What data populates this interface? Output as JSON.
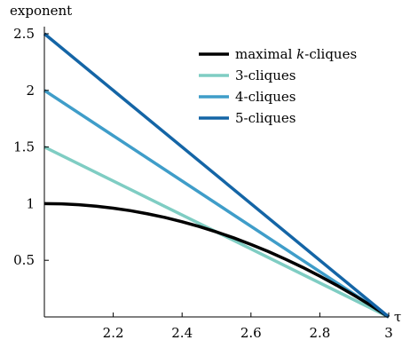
{
  "chart_data": {
    "type": "line",
    "ylabel": "exponent",
    "xlabel": "τ",
    "xlim": [
      2.0,
      3.0
    ],
    "ylim": [
      0.0,
      2.5
    ],
    "x_ticks": [
      {
        "value": 2.2,
        "label": "2.2"
      },
      {
        "value": 2.4,
        "label": "2.4"
      },
      {
        "value": 2.6,
        "label": "2.6"
      },
      {
        "value": 2.8,
        "label": "2.8"
      },
      {
        "value": 3.0,
        "label": "3"
      }
    ],
    "y_ticks": [
      {
        "value": 0.5,
        "label": "0.5"
      },
      {
        "value": 1.0,
        "label": "1"
      },
      {
        "value": 1.5,
        "label": "1.5"
      },
      {
        "value": 2.0,
        "label": "2"
      },
      {
        "value": 2.5,
        "label": "2.5"
      }
    ],
    "legend_position": "top-right",
    "series": [
      {
        "name": "maximal k-cliques",
        "legend_prefix": "maximal ",
        "legend_italic": "k",
        "legend_suffix": "-cliques",
        "color": "#000000",
        "x": [
          2.0,
          2.05,
          2.1,
          2.15,
          2.2,
          2.25,
          2.3,
          2.35,
          2.4,
          2.45,
          2.5,
          2.55,
          2.6,
          2.65,
          2.7,
          2.75,
          2.8,
          2.85,
          2.9,
          2.95,
          3.0
        ],
        "y": [
          1.0,
          0.998,
          0.99,
          0.978,
          0.96,
          0.938,
          0.91,
          0.878,
          0.84,
          0.798,
          0.75,
          0.698,
          0.64,
          0.578,
          0.51,
          0.438,
          0.36,
          0.278,
          0.19,
          0.098,
          0.0
        ]
      },
      {
        "name": "3-cliques",
        "color": "#7fcdc3",
        "x": [
          2.0,
          3.0
        ],
        "y": [
          1.5,
          0.0
        ]
      },
      {
        "name": "4-cliques",
        "color": "#3f9dc9",
        "x": [
          2.0,
          3.0
        ],
        "y": [
          2.0,
          0.0
        ]
      },
      {
        "name": "5-cliques",
        "color": "#1465a6",
        "x": [
          2.0,
          3.0
        ],
        "y": [
          2.5,
          0.0
        ]
      }
    ]
  }
}
